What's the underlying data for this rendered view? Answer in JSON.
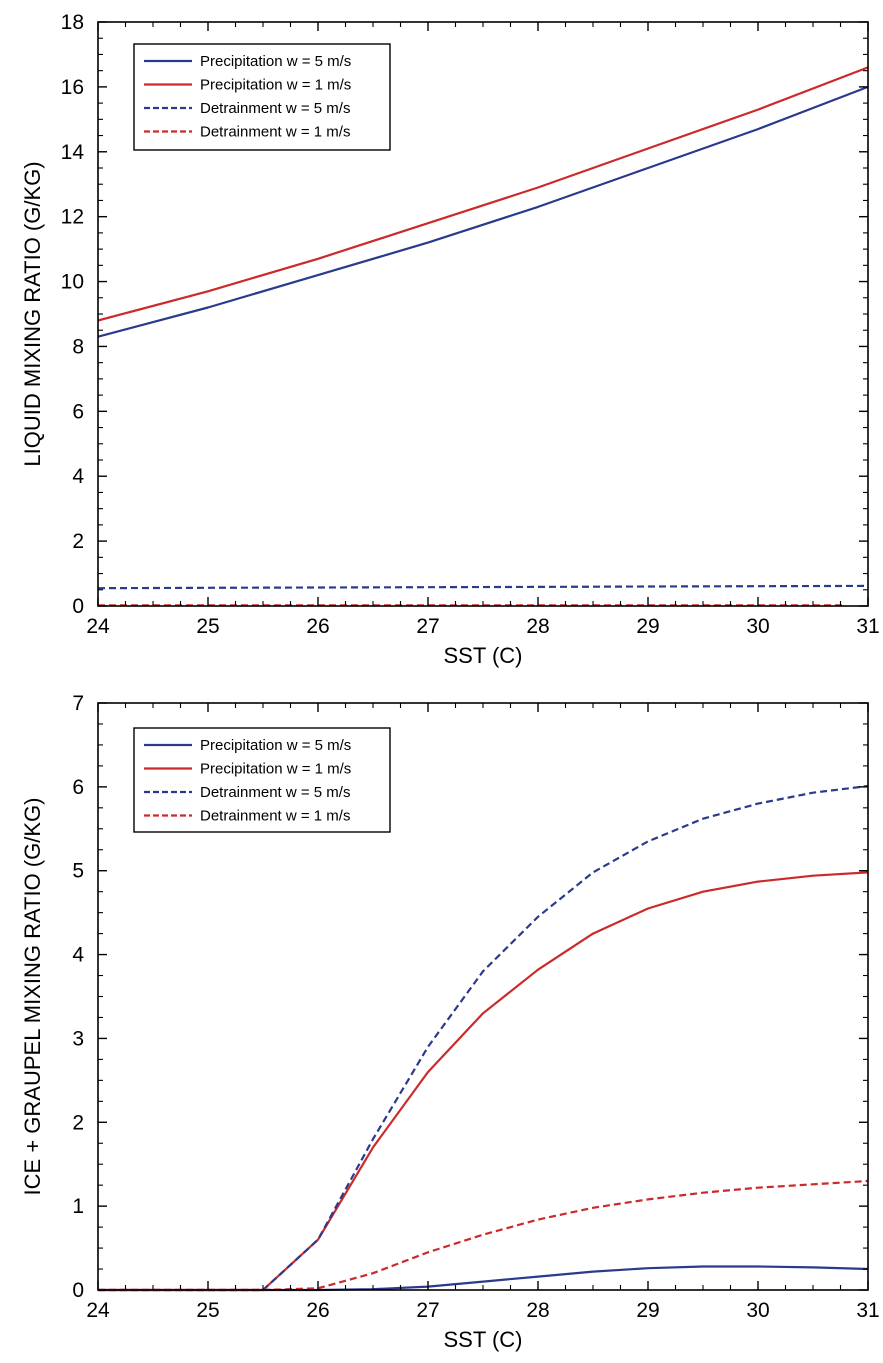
{
  "colors": {
    "blue": "#2b3a8c",
    "red": "#cc2a2a",
    "axis": "#000000"
  },
  "chart_data": [
    {
      "type": "line",
      "xlabel": "SST (C)",
      "ylabel": "LIQUID MIXING RATIO (G/KG)",
      "xlim": [
        24,
        31
      ],
      "ylim": [
        0,
        18
      ],
      "xticks": [
        24,
        25,
        26,
        27,
        28,
        29,
        30,
        31
      ],
      "yticks": [
        0,
        2,
        4,
        6,
        8,
        10,
        12,
        14,
        16,
        18
      ],
      "legend_position": "top-left",
      "series": [
        {
          "name": "Precipitation w = 5 m/s",
          "color": "blue",
          "dash": "solid",
          "x": [
            24,
            25,
            26,
            27,
            28,
            29,
            30,
            31
          ],
          "y": [
            8.3,
            9.2,
            10.2,
            11.2,
            12.3,
            13.5,
            14.7,
            16.0
          ]
        },
        {
          "name": "Precipitation w = 1 m/s",
          "color": "red",
          "dash": "solid",
          "x": [
            24,
            25,
            26,
            27,
            28,
            29,
            30,
            31
          ],
          "y": [
            8.8,
            9.7,
            10.7,
            11.8,
            12.9,
            14.1,
            15.3,
            16.6
          ]
        },
        {
          "name": "Detrainment w = 5 m/s",
          "color": "blue",
          "dash": "dashed",
          "x": [
            24,
            25,
            26,
            27,
            28,
            29,
            30,
            31
          ],
          "y": [
            0.55,
            0.56,
            0.57,
            0.58,
            0.59,
            0.6,
            0.61,
            0.62
          ]
        },
        {
          "name": "Detrainment w = 1 m/s",
          "color": "red",
          "dash": "dashed",
          "x": [
            24,
            25,
            26,
            27,
            28,
            29,
            30,
            30.8
          ],
          "y": [
            0.02,
            0.02,
            0.02,
            0.02,
            0.02,
            0.02,
            0.02,
            0.02
          ]
        }
      ]
    },
    {
      "type": "line",
      "xlabel": "SST (C)",
      "ylabel": "ICE + GRAUPEL MIXING RATIO (G/KG)",
      "xlim": [
        24,
        31
      ],
      "ylim": [
        0,
        7
      ],
      "xticks": [
        24,
        25,
        26,
        27,
        28,
        29,
        30,
        31
      ],
      "yticks": [
        0,
        1,
        2,
        3,
        4,
        5,
        6,
        7
      ],
      "legend_position": "top-left",
      "series": [
        {
          "name": "Precipitation w = 5 m/s",
          "color": "blue",
          "dash": "solid",
          "x": [
            24,
            25,
            25.5,
            26,
            26.5,
            27,
            27.5,
            28,
            28.5,
            29,
            29.5,
            30,
            30.5,
            31
          ],
          "y": [
            0,
            0,
            0,
            0,
            0.01,
            0.04,
            0.1,
            0.16,
            0.22,
            0.26,
            0.28,
            0.28,
            0.27,
            0.25
          ]
        },
        {
          "name": "Precipitation w = 1 m/s",
          "color": "red",
          "dash": "solid",
          "x": [
            24,
            25,
            25.5,
            26,
            26.5,
            27,
            27.5,
            28,
            28.5,
            29,
            29.5,
            30,
            30.5,
            31
          ],
          "y": [
            0,
            0,
            0,
            0.6,
            1.7,
            2.6,
            3.3,
            3.82,
            4.25,
            4.55,
            4.75,
            4.87,
            4.94,
            4.98
          ]
        },
        {
          "name": "Detrainment w = 5 m/s",
          "color": "blue",
          "dash": "dashed",
          "x": [
            24,
            25,
            25.5,
            26,
            26.5,
            27,
            27.5,
            28,
            28.5,
            29,
            29.5,
            30,
            30.5,
            31
          ],
          "y": [
            0,
            0,
            0,
            0.6,
            1.8,
            2.9,
            3.8,
            4.45,
            4.98,
            5.35,
            5.62,
            5.8,
            5.93,
            6.01
          ]
        },
        {
          "name": "Detrainment w = 1 m/s",
          "color": "red",
          "dash": "dashed",
          "x": [
            24,
            25,
            25.5,
            26,
            26.5,
            27,
            27.5,
            28,
            28.5,
            29,
            29.5,
            30,
            30.5,
            31
          ],
          "y": [
            0,
            0,
            0,
            0.02,
            0.2,
            0.45,
            0.66,
            0.84,
            0.98,
            1.08,
            1.16,
            1.22,
            1.26,
            1.3
          ]
        }
      ]
    }
  ]
}
